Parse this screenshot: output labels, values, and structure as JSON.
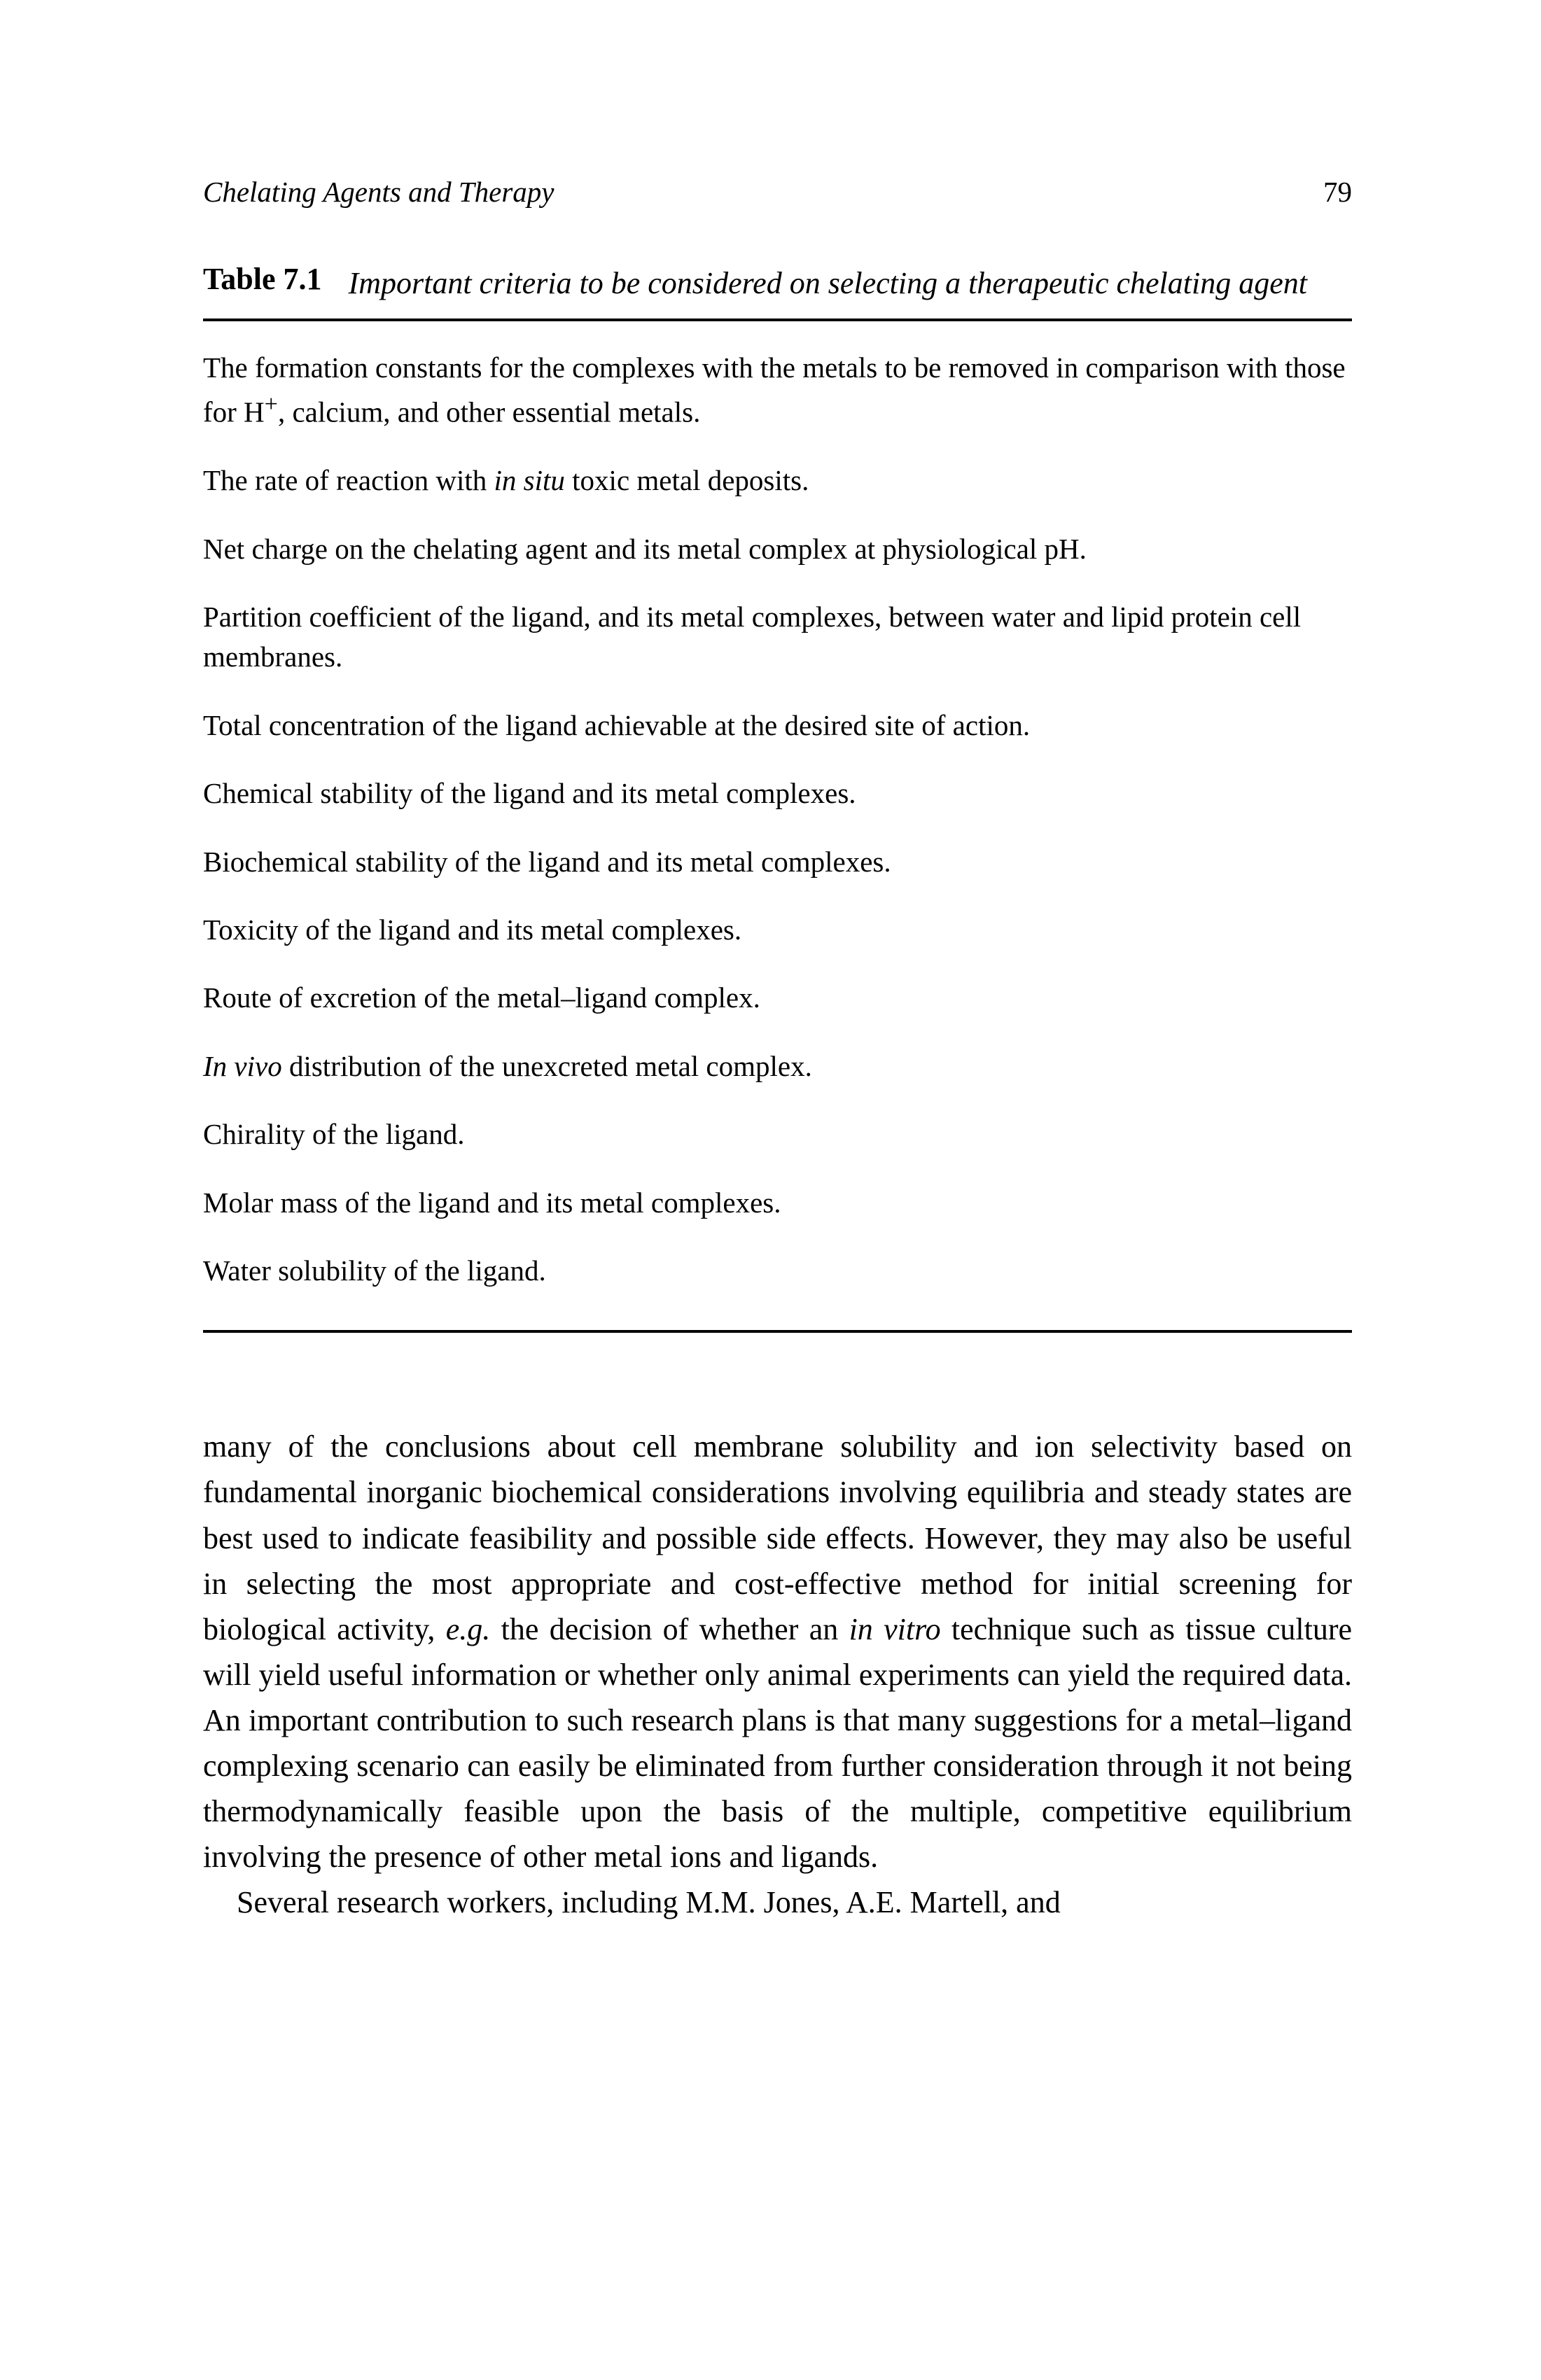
{
  "header": {
    "running_title": "Chelating Agents and Therapy",
    "page_number": "79"
  },
  "table": {
    "label": "Table 7.1",
    "title": "Important criteria to be considered on selecting a therapeutic chelating agent",
    "rule_color": "#000000",
    "rule_thickness": 4,
    "criteria": [
      {
        "text": "The formation constants for the complexes with the metals to be removed in comparison with those for H",
        "sup": "+",
        "tail": ", calcium, and other essential metals."
      },
      {
        "pre": "The rate of reaction with ",
        "italic": "in situ",
        "post": " toxic metal deposits."
      },
      {
        "text": "Net charge on the chelating agent and its metal complex at physiological pH."
      },
      {
        "text": "Partition coefficient of the ligand, and its metal complexes, between water and lipid protein cell membranes."
      },
      {
        "text": "Total concentration of the ligand achievable at the desired site of action."
      },
      {
        "text": "Chemical stability of the ligand and its metal complexes."
      },
      {
        "text": "Biochemical stability of the ligand and its metal complexes."
      },
      {
        "text": "Toxicity of the ligand and its metal complexes."
      },
      {
        "text": "Route of excretion of the metal–ligand complex."
      },
      {
        "italic": "In vivo",
        "post": " distribution of the unexcreted metal complex."
      },
      {
        "text": "Chirality of the ligand."
      },
      {
        "text": "Molar mass of the ligand and its metal complexes."
      },
      {
        "text": "Water solubility of the ligand."
      }
    ]
  },
  "body": {
    "p1_a": "many of the conclusions about cell membrane solubility and ion selectivity based on fundamental inorganic biochemical considerations involving equilibria and steady states are best used to indicate feasibility and possible side effects. However, they may also be useful in selecting the most appropriate and cost-effective method for initial screening for biological activity, ",
    "p1_eg": "e.g.",
    "p1_b": " the decision of whether an ",
    "p1_invitro": "in vitro",
    "p1_c": " technique such as tissue culture will yield useful information or whether only animal experiments can yield the required data. An important contribution to such research plans is that many suggestions for a metal–ligand complexing scenario can easily be eliminated from further consideration through it not being thermodynamically feasible upon the basis of the multiple, competitive equilibrium involving the presence of other metal ions and ligands.",
    "p2": "Several research workers, including M.M. Jones, A.E. Martell, and"
  },
  "typography": {
    "body_fontsize": 44,
    "criterion_fontsize": 41,
    "header_fontsize": 41,
    "line_height": 1.48,
    "font_family": "Georgia, Times New Roman, serif",
    "text_color": "#000000",
    "background_color": "#ffffff"
  }
}
